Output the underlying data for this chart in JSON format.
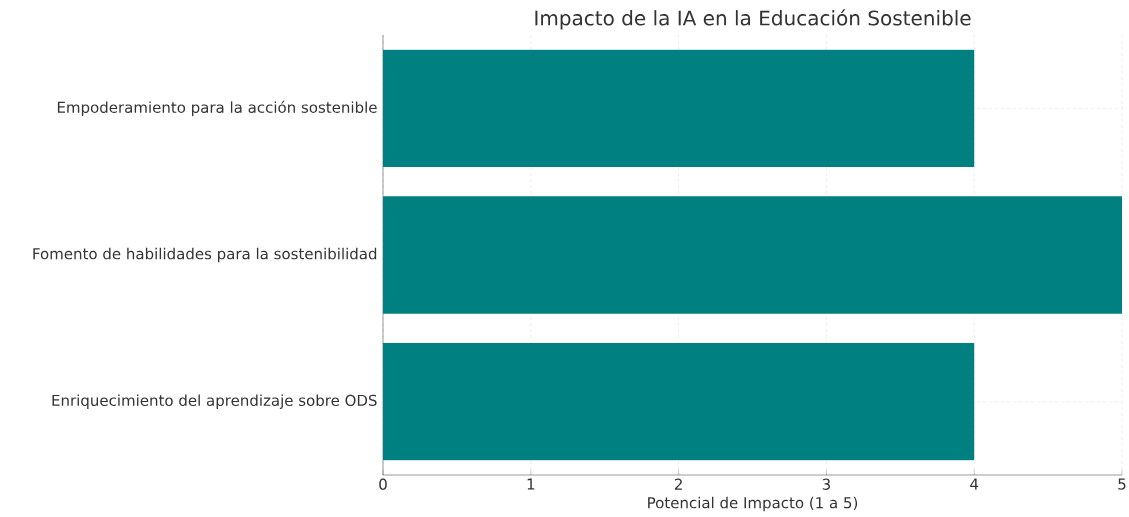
{
  "chart_data": {
    "type": "bar",
    "orientation": "horizontal",
    "title": "Impacto de la IA en la Educación Sostenible",
    "xlabel": "Potencial de Impacto (1 a 5)",
    "categories": [
      "Empoderamiento para la acción sostenible",
      "Fomento de habilidades para la sostenibilidad",
      "Enriquecimiento del aprendizaje sobre ODS"
    ],
    "values": [
      4,
      5,
      4
    ],
    "color": "#008080",
    "xlim": [
      0,
      5
    ],
    "xticks": [
      0,
      1,
      2,
      3,
      4,
      5
    ],
    "grid": true
  }
}
